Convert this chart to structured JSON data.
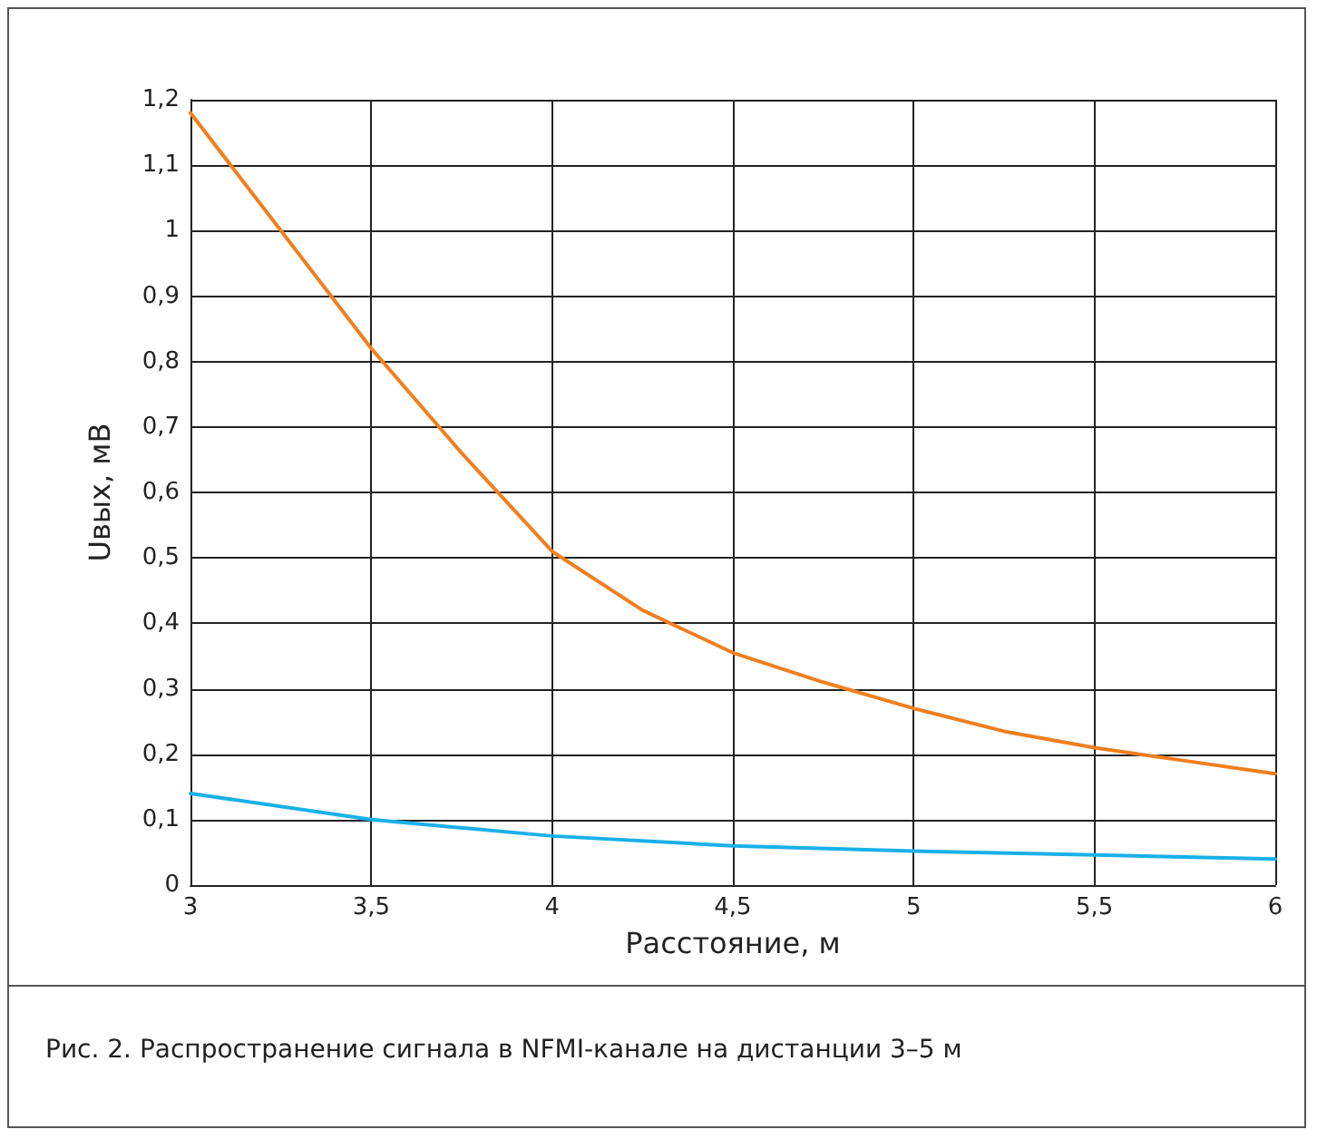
{
  "chart_data": {
    "type": "line",
    "xlabel": "Расстояние, м",
    "ylabel": "Uвых, мВ",
    "annotations": [
      "Рис. 2. Распространение сигнала в NFMI-канале на дистанции 3–5 м"
    ],
    "xlim": [
      3,
      6
    ],
    "xticks": [
      3,
      {
        "value": 3.5,
        "label": "3,5"
      },
      4,
      {
        "value": 4.5,
        "label": "4,5"
      },
      5,
      {
        "value": 5.5,
        "label": "5,5"
      },
      6
    ],
    "ylim": [
      0,
      1.2
    ],
    "yticks": [
      0,
      {
        "value": 0.1,
        "label": "0,1"
      },
      {
        "value": 0.2,
        "label": "0,2"
      },
      {
        "value": 0.3,
        "label": "0,3"
      },
      {
        "value": 0.4,
        "label": "0,4"
      },
      {
        "value": 0.5,
        "label": "0,5"
      },
      {
        "value": 0.6,
        "label": "0,6"
      },
      {
        "value": 0.7,
        "label": "0,7"
      },
      {
        "value": 0.8,
        "label": "0,8"
      },
      {
        "value": 0.9,
        "label": "0,9"
      },
      1,
      {
        "value": 1.1,
        "label": "1,1"
      },
      {
        "value": 1.2,
        "label": "1,2"
      }
    ],
    "grid": true,
    "marker": "none",
    "line_style": "solid",
    "series": [
      {
        "color": "#f07f1f",
        "x": [
          3,
          3.25,
          3.5,
          3.75,
          4,
          4.25,
          4.5,
          4.75,
          5,
          5.25,
          5.5,
          5.75,
          6
        ],
        "values": [
          1.18,
          1.0,
          0.82,
          0.66,
          0.51,
          0.42,
          0.355,
          0.31,
          0.27,
          0.235,
          0.21,
          0.19,
          0.17
        ]
      },
      {
        "color": "#1ab0e8",
        "x": [
          3,
          3.5,
          4,
          4.5,
          5,
          5.5,
          6
        ],
        "values": [
          0.14,
          0.1,
          0.075,
          0.06,
          0.052,
          0.046,
          0.04
        ]
      }
    ]
  }
}
